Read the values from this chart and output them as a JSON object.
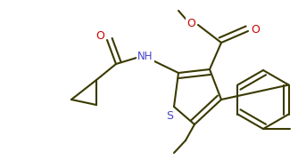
{
  "line_color": "#3a3a00",
  "bg_color": "#ffffff",
  "line_width": 1.5,
  "dbo": 0.012,
  "font_size": 8.5,
  "figsize": [
    3.34,
    1.8
  ],
  "dpi": 100,
  "atom_colors": {
    "O": "#cc0000",
    "S": "#4444cc",
    "N": "#4444cc",
    "C": "#3a3a00"
  }
}
